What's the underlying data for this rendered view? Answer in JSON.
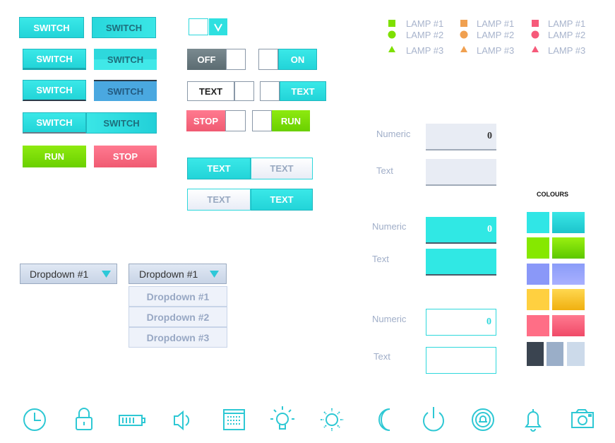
{
  "switches": [
    "SWITCH",
    "SWITCH",
    "SWITCH",
    "SWITCH",
    "SWITCH",
    "SWITCH",
    "SWITCH",
    "SWITCH"
  ],
  "buttons": {
    "run": "RUN",
    "stop": "STOP"
  },
  "toggles": {
    "off": "OFF",
    "on": "ON",
    "text_left": "TEXT",
    "text_right": "TEXT",
    "stop": "STOP",
    "run": "RUN"
  },
  "segmented": [
    [
      "TEXT",
      "TEXT"
    ],
    [
      "TEXT",
      "TEXT"
    ]
  ],
  "lamps": [
    [
      "LAMP #1",
      "LAMP #2",
      "LAMP #3"
    ],
    [
      "LAMP #1",
      "LAMP #2",
      "LAMP #3"
    ],
    [
      "LAMP #1",
      "LAMP #2",
      "LAMP #3"
    ]
  ],
  "fields": [
    {
      "numeric_label": "Numeric",
      "value": 0,
      "text_label": "Text"
    },
    {
      "numeric_label": "Numeric",
      "value": 0,
      "text_label": "Text"
    },
    {
      "numeric_label": "Numeric",
      "value": 0,
      "text_label": "Text"
    }
  ],
  "colours_title": "COLOURS",
  "dropdowns": [
    {
      "label": "Dropdown #1"
    },
    {
      "label": "Dropdown #1",
      "options": [
        "Dropdown #1",
        "Dropdown #2",
        "Dropdown #3"
      ]
    }
  ]
}
